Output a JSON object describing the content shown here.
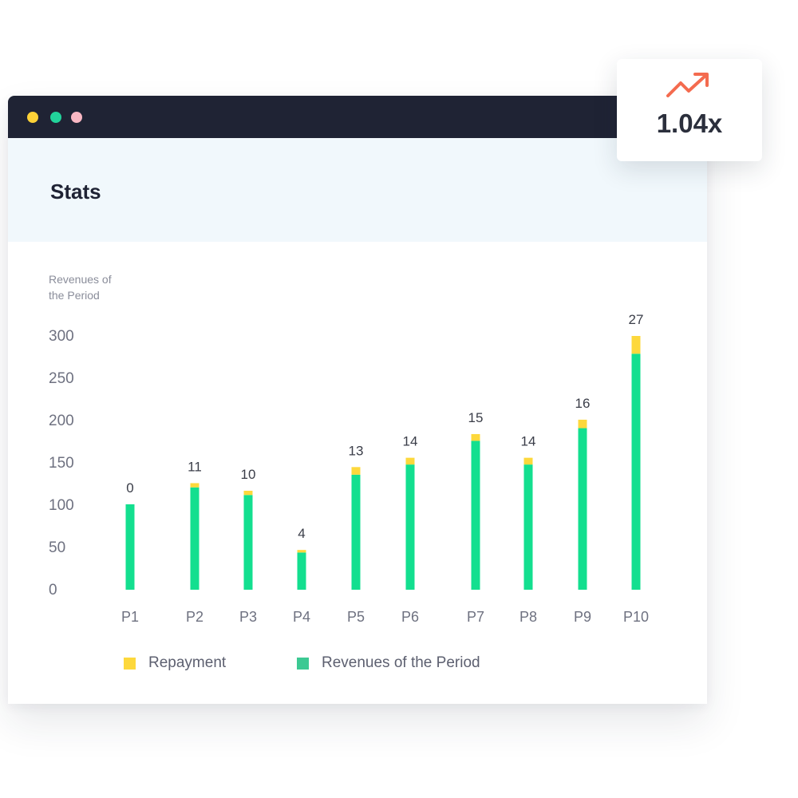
{
  "page": {
    "title": "Stats"
  },
  "window_dots": [
    "yellow",
    "green",
    "pink"
  ],
  "multiplier": {
    "icon": "trending-up-icon",
    "icon_color": "#f46b4f",
    "value": "1.04x"
  },
  "chart_data": {
    "type": "bar",
    "stacked": true,
    "ylabel": "Revenues of the Period",
    "ylabel_lines": [
      "Revenues of",
      "the Period"
    ],
    "yticks": [
      0,
      50,
      100,
      150,
      200,
      250,
      300
    ],
    "ylim": [
      0,
      300
    ],
    "categories": [
      "P1",
      "P2",
      "P3",
      "P4",
      "P5",
      "P6",
      "P7",
      "P8",
      "P9",
      "P10"
    ],
    "series": [
      {
        "name": "Revenues of the Period",
        "color": "#13df8f",
        "values": [
          101,
          121,
          112,
          44,
          136,
          148,
          176,
          148,
          191,
          279
        ]
      },
      {
        "name": "Repayment",
        "color": "#fdd83c",
        "values": [
          0,
          5,
          5,
          3,
          9,
          8,
          8,
          8,
          10,
          21
        ]
      }
    ],
    "data_labels": [
      "0",
      "11",
      "10",
      "4",
      "13",
      "14",
      "15",
      "14",
      "16",
      "27"
    ],
    "legend": {
      "position": "bottom-left",
      "items": [
        {
          "label": "Repayment",
          "color": "#fdd83c"
        },
        {
          "label": "Revenues of the Period",
          "color": "#3cc993"
        }
      ]
    },
    "grid": false
  }
}
